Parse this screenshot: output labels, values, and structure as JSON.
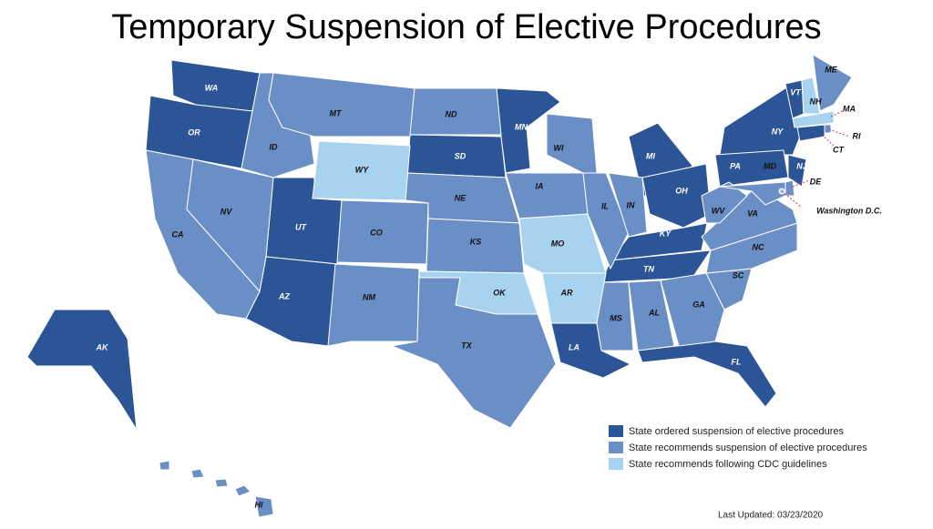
{
  "header": {
    "title": "Temporary Suspension of Elective Procedures"
  },
  "legend": [
    {
      "label": "State ordered suspension of elective procedures",
      "color": "#2b5596",
      "states": [
        "WA",
        "OR",
        "UT",
        "AZ",
        "SD",
        "MN",
        "LA",
        "MI",
        "OH",
        "KY",
        "TN",
        "FL",
        "NY",
        "VT",
        "PA",
        "NJ",
        "CT",
        "AK"
      ]
    },
    {
      "label": "State recommends suspension of elective procedures",
      "color": "#6a8ec6",
      "states": [
        "CA",
        "NV",
        "ID",
        "MT",
        "CO",
        "NM",
        "ND",
        "NE",
        "KS",
        "TX",
        "IA",
        "WI",
        "IL",
        "IN",
        "MS",
        "AL",
        "GA",
        "SC",
        "NC",
        "VA",
        "WV",
        "MD",
        "DE",
        "RI",
        "ME",
        "HI"
      ]
    },
    {
      "label": "State recommends following CDC guidelines",
      "color": "#a8d3f0",
      "states": [
        "WY",
        "MO",
        "OK",
        "AR",
        "NH",
        "MA",
        "Washington D.C."
      ]
    }
  ],
  "footer": {
    "updated": "Last Updated: 03/23/2020"
  }
}
